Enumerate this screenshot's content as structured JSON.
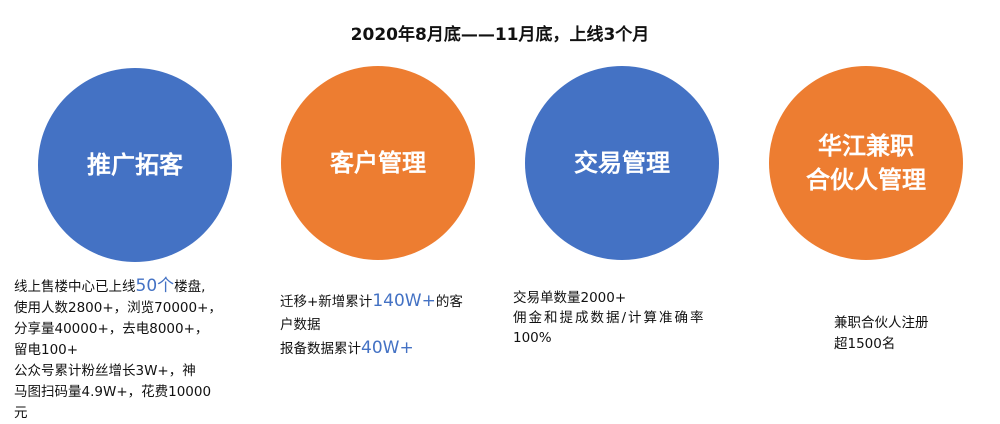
{
  "title": "2020年8月底——11月底，上线3个月",
  "colors": {
    "blue": "#4472C4",
    "orange": "#ED7D31",
    "highlight": "#4472C4"
  },
  "nodes": [
    {
      "label": "推广拓客",
      "color": "blue",
      "desc": {
        "l1a": "线上售楼中心已上线",
        "l1h": "50个",
        "l1b": "楼盘,",
        "l2": "使用人数2800+，浏览70000+，",
        "l3": "分享量40000+，去电8000+，",
        "l4": "留电100+",
        "l5": "公众号累计粉丝增长3W+，神",
        "l6": "马图扫码量4.9W+，花费10000",
        "l7": "元"
      }
    },
    {
      "label": "客户管理",
      "color": "orange",
      "desc": {
        "l1a": "迁移+新增累计",
        "l1h": "140W+",
        "l1b": "的客",
        "l2": "户数据",
        "l3a": "报备数据累计",
        "l3h": "40W+"
      }
    },
    {
      "label": "交易管理",
      "color": "blue",
      "desc": {
        "l1": "交易单数量2000+",
        "l2": "佣金和提成数据/计算准确率",
        "l3": "100%"
      }
    },
    {
      "label_line1": "华江兼职",
      "label_line2": "合伙人管理",
      "color": "orange",
      "desc": {
        "l1": "兼职合伙人注册",
        "l2": "超1500名"
      }
    }
  ]
}
